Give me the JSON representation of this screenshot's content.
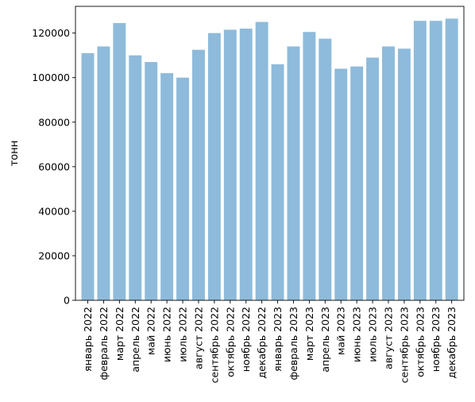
{
  "chart_data": {
    "type": "bar",
    "title": "",
    "xlabel": "",
    "ylabel": "тонн",
    "ylim": [
      0,
      132000
    ],
    "yticks": [
      0,
      20000,
      40000,
      60000,
      80000,
      100000,
      120000
    ],
    "grid": false,
    "bar_color": "#8ebbdb",
    "categories": [
      "январь 2022",
      "февраль 2022",
      "март 2022",
      "апрель 2022",
      "май 2022",
      "июнь 2022",
      "июль 2022",
      "август 2022",
      "сентябрь 2022",
      "октябрь 2022",
      "ноябрь 2022",
      "декабрь 2022",
      "январь 2023",
      "февраль 2023",
      "март 2023",
      "апрель 2023",
      "май 2023",
      "июнь 2023",
      "июль 2023",
      "август 2023",
      "сентябрь 2023",
      "октябрь 2023",
      "ноябрь 2023",
      "декабрь 2023"
    ],
    "values": [
      111000,
      114000,
      124500,
      110000,
      107000,
      102000,
      100000,
      112500,
      120000,
      121500,
      122000,
      125000,
      106000,
      114000,
      120500,
      117500,
      104000,
      105000,
      109000,
      114000,
      113000,
      125500,
      125500,
      126500
    ]
  }
}
